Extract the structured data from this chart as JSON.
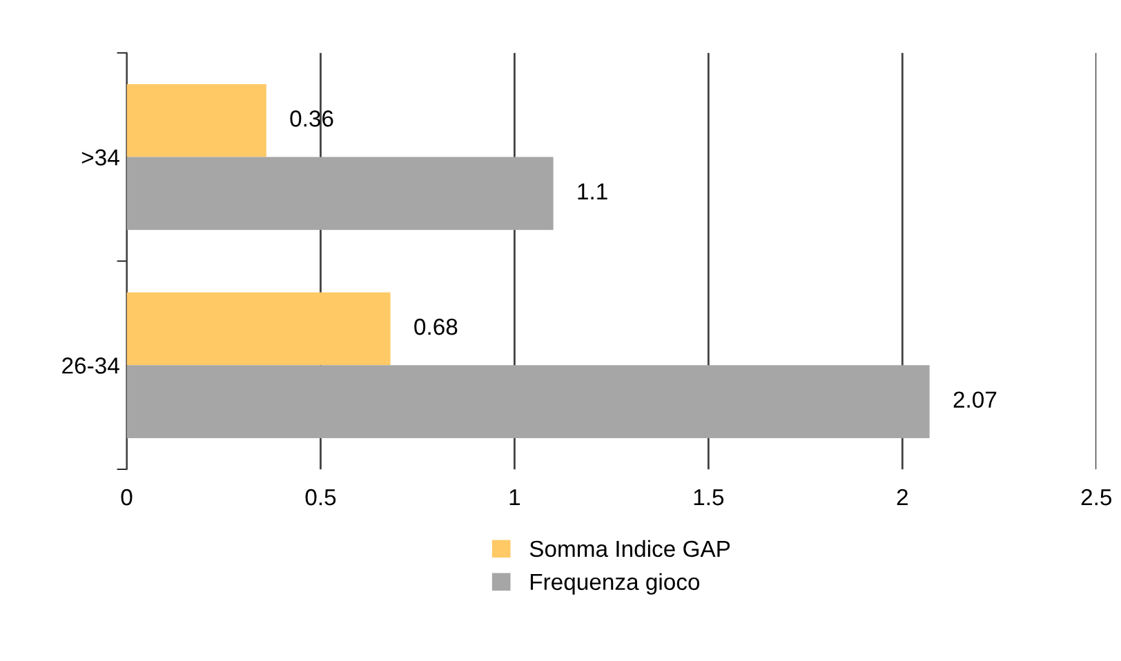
{
  "chart_data": {
    "type": "bar",
    "orientation": "horizontal",
    "categories": [
      ">34",
      "26-34"
    ],
    "series": [
      {
        "name": "Somma Indice GAP",
        "color": "#ffc966",
        "values": [
          0.36,
          0.68
        ]
      },
      {
        "name": "Frequenza gioco",
        "color": "#a6a6a6",
        "values": [
          1.1,
          2.07
        ]
      }
    ],
    "xlim": [
      0,
      2.5
    ],
    "xticks": [
      0,
      0.5,
      1,
      1.5,
      2,
      2.5
    ],
    "grid": "x",
    "legend": "bottom",
    "data_labels": true
  }
}
